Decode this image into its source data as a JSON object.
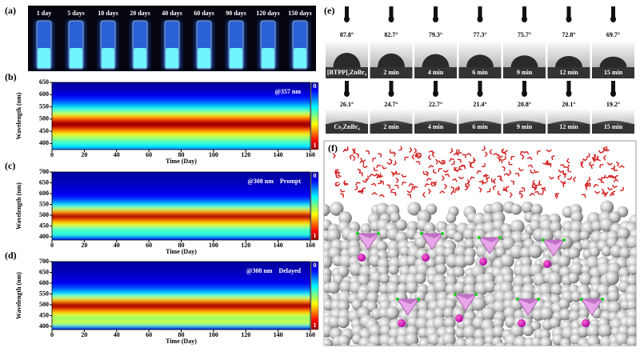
{
  "photo": {
    "label": "(a)",
    "days": [
      "1 day",
      "5 days",
      "10 days",
      "20 days",
      "40 days",
      "60 days",
      "90 days",
      "120 days",
      "150 days"
    ]
  },
  "chart_data": [
    {
      "type": "heatmap",
      "label": "(b)",
      "annotation": "@357 nm",
      "xlabel": "Time (Day)",
      "ylabel": "Wavelength (nm)",
      "colormap": "jet",
      "xlim": [
        0,
        160
      ],
      "xticks": [
        0,
        20,
        40,
        60,
        80,
        100,
        120,
        140,
        160
      ],
      "ylim": [
        375,
        650
      ],
      "yticks": [
        400,
        450,
        500,
        550,
        600,
        650
      ],
      "colorbar_ticks": [
        0,
        1
      ],
      "wavelengths": [
        380,
        390,
        400,
        410,
        420,
        430,
        440,
        450,
        460,
        470,
        480,
        490,
        500,
        510,
        520,
        530,
        540,
        550,
        560,
        570,
        580,
        590,
        600,
        610,
        620,
        630,
        640,
        650
      ],
      "intensity": [
        0.3,
        0.35,
        0.4,
        0.45,
        0.5,
        0.55,
        0.62,
        0.72,
        0.85,
        0.95,
        1.0,
        0.95,
        0.85,
        0.72,
        0.6,
        0.5,
        0.42,
        0.35,
        0.28,
        0.22,
        0.17,
        0.13,
        0.1,
        0.08,
        0.06,
        0.05,
        0.04,
        0.03
      ]
    },
    {
      "type": "heatmap",
      "label": "(c)",
      "annotation": "@308 nm",
      "mode": "Prompt",
      "xlabel": "Time (Day)",
      "ylabel": "Wavelength (nm)",
      "colormap": "jet",
      "xlim": [
        0,
        160
      ],
      "xticks": [
        0,
        20,
        40,
        60,
        80,
        100,
        120,
        140,
        160
      ],
      "ylim": [
        385,
        700
      ],
      "yticks": [
        400,
        450,
        500,
        550,
        600,
        650,
        700
      ],
      "colorbar_ticks": [
        0,
        1
      ],
      "wavelengths": [
        400,
        410,
        420,
        430,
        440,
        450,
        460,
        470,
        480,
        490,
        500,
        510,
        520,
        530,
        540,
        550,
        560,
        570,
        580,
        590,
        600,
        610,
        620,
        630,
        640,
        650,
        660,
        670,
        680,
        690,
        700
      ],
      "intensity": [
        0.3,
        0.4,
        0.45,
        0.4,
        0.45,
        0.55,
        0.62,
        0.7,
        0.82,
        0.95,
        1.0,
        0.85,
        0.7,
        0.55,
        0.45,
        0.35,
        0.27,
        0.2,
        0.16,
        0.13,
        0.11,
        0.1,
        0.09,
        0.08,
        0.07,
        0.06,
        0.05,
        0.05,
        0.04,
        0.04,
        0.03
      ]
    },
    {
      "type": "heatmap",
      "label": "(d)",
      "annotation": "@308 nm",
      "mode": "Delayed",
      "xlabel": "Time (Day)",
      "ylabel": "Wavelength (nm)",
      "colormap": "jet",
      "xlim": [
        0,
        160
      ],
      "xticks": [
        0,
        20,
        40,
        60,
        80,
        100,
        120,
        140,
        160
      ],
      "ylim": [
        385,
        700
      ],
      "yticks": [
        400,
        450,
        500,
        550,
        600,
        650,
        700
      ],
      "colorbar_ticks": [
        0,
        1
      ],
      "wavelengths": [
        400,
        410,
        420,
        430,
        440,
        450,
        460,
        470,
        480,
        490,
        500,
        510,
        520,
        530,
        540,
        550,
        560,
        570,
        580,
        590,
        600,
        610,
        620,
        630,
        640,
        650,
        660,
        670,
        680,
        690,
        700
      ],
      "intensity": [
        0.35,
        0.5,
        0.6,
        0.55,
        0.5,
        0.55,
        0.62,
        0.72,
        0.85,
        0.95,
        1.0,
        0.9,
        0.75,
        0.6,
        0.48,
        0.38,
        0.3,
        0.24,
        0.19,
        0.15,
        0.11,
        0.1,
        0.09,
        0.08,
        0.07,
        0.06,
        0.05,
        0.05,
        0.04,
        0.04,
        0.03
      ]
    }
  ],
  "contact_angle": {
    "label": "(e)",
    "rows": [
      {
        "angles": [
          "87.8°",
          "82.7°",
          "79.3°",
          "77.3°",
          "75.7°",
          "72.8°",
          "69.7°"
        ],
        "samples": [
          "[BTPP]₂ZnBr₄",
          "2 min",
          "4 min",
          "6 min",
          "9 min",
          "12 min",
          "15 min"
        ]
      },
      {
        "angles": [
          "26.1°",
          "24.7°",
          "22.7°",
          "21.4°",
          "20.8°",
          "20.1°",
          "19.2°"
        ],
        "samples": [
          "Cs₂ZnBr₄",
          "2 min",
          "4 min",
          "6 min",
          "9 min",
          "12 min",
          "15 min"
        ]
      }
    ]
  },
  "model": {
    "label": "(f)"
  }
}
